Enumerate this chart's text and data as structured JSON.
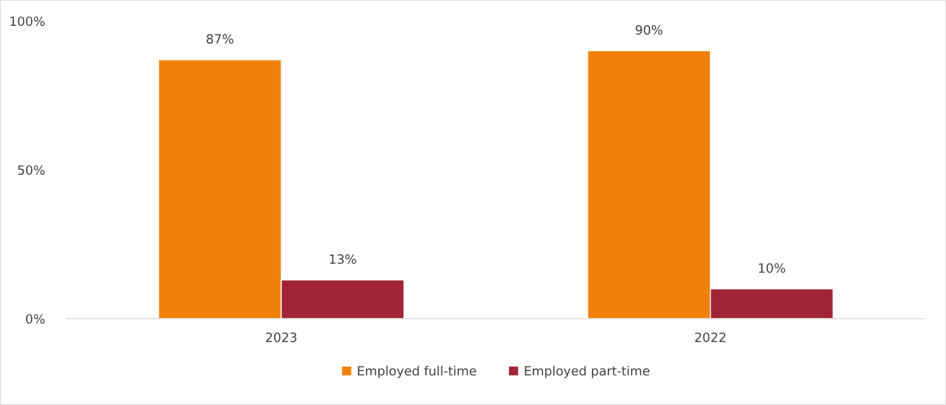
{
  "chart_data": {
    "type": "bar",
    "categories": [
      "2023",
      "2022"
    ],
    "series": [
      {
        "name": "Employed full-time",
        "color": "#f0800c",
        "values": [
          87,
          90
        ],
        "value_labels": [
          "87%",
          "90%"
        ]
      },
      {
        "name": "Employed part-time",
        "color": "#a12537",
        "values": [
          13,
          10
        ],
        "value_labels": [
          "13%",
          "10%"
        ]
      }
    ],
    "ylim": [
      0,
      100
    ],
    "yticks": [
      {
        "value": 0,
        "label": "0%"
      },
      {
        "value": 50,
        "label": "50%"
      },
      {
        "value": 100,
        "label": "100%"
      }
    ],
    "grid": false,
    "legend": "bottom"
  }
}
